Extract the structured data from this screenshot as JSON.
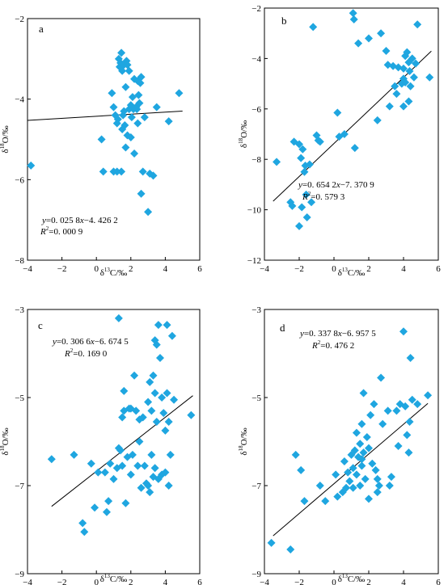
{
  "figure": {
    "point_color": "#1fa6e0",
    "line_color": "#000000"
  },
  "chart_data": [
    {
      "type": "scatter",
      "panel_label": "a",
      "xlabel_main": "δ",
      "xlabel_sup": "13",
      "xlabel_rest": "C/‰",
      "ylabel_main": "δ",
      "ylabel_sup": "18",
      "ylabel_rest": "O/‰",
      "xlim": [
        -4,
        6
      ],
      "ylim": [
        -8,
        -2
      ],
      "xticks": [
        -4,
        -2,
        0,
        2,
        4,
        6
      ],
      "yticks": [
        -8,
        -6,
        -4,
        -2
      ],
      "xtick_labels": [
        "−4",
        "−2",
        "0",
        "2",
        "4",
        "6"
      ],
      "ytick_labels": [
        "−8",
        "−6",
        "−4",
        "−2"
      ],
      "equation": {
        "line1_a": "y",
        "line1_b": "=0. 025 8",
        "line1_c": "x",
        "line1_d": "−4. 426 2",
        "line2_a": "R",
        "line2_b": "2",
        "line2_c": "=0. 000 9"
      },
      "fit": {
        "slope": 0.0258,
        "intercept": -4.4262,
        "x_range": [
          -4,
          5
        ]
      },
      "points": [
        [
          -3.8,
          -5.65
        ],
        [
          0.3,
          -5.0
        ],
        [
          0.4,
          -5.8
        ],
        [
          0.9,
          -3.85
        ],
        [
          1.0,
          -4.2
        ],
        [
          1.1,
          -4.4
        ],
        [
          1.2,
          -4.6
        ],
        [
          1.2,
          -5.8
        ],
        [
          1.3,
          -3.0
        ],
        [
          1.35,
          -3.2
        ],
        [
          1.4,
          -3.1
        ],
        [
          1.45,
          -2.85
        ],
        [
          1.5,
          -3.3
        ],
        [
          1.55,
          -4.4
        ],
        [
          1.6,
          -4.3
        ],
        [
          1.6,
          -3.15
        ],
        [
          1.65,
          -4.65
        ],
        [
          1.7,
          -3.7
        ],
        [
          1.7,
          -5.2
        ],
        [
          1.75,
          -3.05
        ],
        [
          1.8,
          -3.15
        ],
        [
          1.8,
          -4.9
        ],
        [
          1.9,
          -4.25
        ],
        [
          1.9,
          -3.3
        ],
        [
          2.0,
          -4.15
        ],
        [
          2.0,
          -4.95
        ],
        [
          2.05,
          -4.45
        ],
        [
          2.1,
          -3.95
        ],
        [
          2.15,
          -4.25
        ],
        [
          2.2,
          -5.35
        ],
        [
          2.2,
          -3.5
        ],
        [
          2.3,
          -4.2
        ],
        [
          2.35,
          -4.25
        ],
        [
          2.4,
          -3.55
        ],
        [
          2.4,
          -4.6
        ],
        [
          2.45,
          -3.9
        ],
        [
          2.5,
          -4.1
        ],
        [
          2.6,
          -3.45
        ],
        [
          2.6,
          -6.35
        ],
        [
          2.7,
          -5.8
        ],
        [
          2.8,
          -4.45
        ],
        [
          1.45,
          -5.8
        ],
        [
          1.5,
          -4.75
        ],
        [
          1.25,
          -4.5
        ],
        [
          3.0,
          -6.8
        ],
        [
          3.1,
          -5.85
        ],
        [
          3.3,
          -5.9
        ],
        [
          3.5,
          -4.2
        ],
        [
          4.2,
          -4.55
        ],
        [
          4.8,
          -3.85
        ],
        [
          1.0,
          -5.8
        ],
        [
          2.55,
          -3.6
        ]
      ]
    },
    {
      "type": "scatter",
      "panel_label": "b",
      "xlabel_main": "δ",
      "xlabel_sup": "13",
      "xlabel_rest": "C/‰",
      "ylabel_main": "δ",
      "ylabel_sup": "18",
      "ylabel_rest": "O/‰",
      "xlim": [
        -4,
        6
      ],
      "ylim": [
        -12,
        -2
      ],
      "xticks": [
        -4,
        -2,
        0,
        2,
        4,
        6
      ],
      "yticks": [
        -12,
        -10,
        -8,
        -6,
        -4,
        -2
      ],
      "xtick_labels": [
        "−4",
        "−2",
        "0",
        "2",
        "4",
        "6"
      ],
      "ytick_labels": [
        "−12",
        "−10",
        "−8",
        "−6",
        "−4",
        "−2"
      ],
      "equation": {
        "line1_a": "y",
        "line1_b": "=0. 654 2",
        "line1_c": "x",
        "line1_d": "−7. 370 9",
        "line2_a": "R",
        "line2_b": "2",
        "line2_c": "=0. 579 3"
      },
      "fit": {
        "slope": 0.6542,
        "intercept": -7.3709,
        "x_range": [
          -3.5,
          5.6
        ]
      },
      "points": [
        [
          -3.3,
          -8.1
        ],
        [
          -2.5,
          -9.7
        ],
        [
          -2.4,
          -9.85
        ],
        [
          -2.3,
          -7.3
        ],
        [
          -2.0,
          -10.65
        ],
        [
          -1.9,
          -7.95
        ],
        [
          -1.85,
          -9.9
        ],
        [
          -1.8,
          -7.6
        ],
        [
          -1.7,
          -8.5
        ],
        [
          -1.65,
          -8.25
        ],
        [
          -1.6,
          -9.4
        ],
        [
          -1.55,
          -10.3
        ],
        [
          -1.4,
          -8.2
        ],
        [
          -1.3,
          -9.7
        ],
        [
          -1.2,
          -2.75
        ],
        [
          -1.0,
          -7.05
        ],
        [
          -0.9,
          -7.25
        ],
        [
          -0.8,
          -7.3
        ],
        [
          0.2,
          -6.15
        ],
        [
          0.3,
          -7.1
        ],
        [
          0.6,
          -7.0
        ],
        [
          1.1,
          -2.2
        ],
        [
          1.15,
          -2.45
        ],
        [
          1.2,
          -7.55
        ],
        [
          1.4,
          -3.4
        ],
        [
          2.0,
          -3.2
        ],
        [
          2.5,
          -6.45
        ],
        [
          2.7,
          -3.0
        ],
        [
          3.0,
          -3.7
        ],
        [
          3.1,
          -4.25
        ],
        [
          3.2,
          -5.9
        ],
        [
          3.4,
          -4.3
        ],
        [
          3.5,
          -5.1
        ],
        [
          3.6,
          -5.4
        ],
        [
          3.7,
          -4.35
        ],
        [
          3.9,
          -5.0
        ],
        [
          4.0,
          -4.4
        ],
        [
          4.0,
          -4.8
        ],
        [
          4.1,
          -4.95
        ],
        [
          4.1,
          -3.9
        ],
        [
          4.2,
          -3.75
        ],
        [
          4.3,
          -4.15
        ],
        [
          4.35,
          -4.5
        ],
        [
          4.4,
          -5.1
        ],
        [
          4.5,
          -4.0
        ],
        [
          4.6,
          -4.75
        ],
        [
          4.7,
          -4.2
        ],
        [
          4.8,
          -2.65
        ],
        [
          4.3,
          -5.7
        ],
        [
          4.0,
          -5.9
        ],
        [
          5.5,
          -4.75
        ],
        [
          -2.0,
          -7.4
        ]
      ]
    },
    {
      "type": "scatter",
      "panel_label": "c",
      "xlabel_main": "δ",
      "xlabel_sup": "13",
      "xlabel_rest": "C/‰",
      "ylabel_main": "δ",
      "ylabel_sup": "18",
      "ylabel_rest": "O/‰",
      "xlim": [
        -4,
        6
      ],
      "ylim": [
        -9,
        -3
      ],
      "xticks": [
        -4,
        -2,
        0,
        2,
        4,
        6
      ],
      "yticks": [
        -9,
        -7,
        -5,
        -3
      ],
      "xtick_labels": [
        "−4",
        "−2",
        "0",
        "2",
        "4",
        "6"
      ],
      "ytick_labels": [
        "−9",
        "−7",
        "−5",
        "−3"
      ],
      "equation": {
        "line1_a": "y",
        "line1_b": "=0. 306 6",
        "line1_c": "x",
        "line1_d": "−6. 674 5",
        "line2_a": "R",
        "line2_b": "2",
        "line2_c": "=0. 169 0"
      },
      "fit": {
        "slope": 0.3066,
        "intercept": -6.6745,
        "x_range": [
          -2.6,
          5.6
        ]
      },
      "points": [
        [
          -2.6,
          -6.4
        ],
        [
          -1.3,
          -6.3
        ],
        [
          -0.8,
          -7.85
        ],
        [
          -0.7,
          -8.05
        ],
        [
          -0.3,
          -6.5
        ],
        [
          -0.1,
          -7.5
        ],
        [
          0.1,
          -6.7
        ],
        [
          0.5,
          -6.7
        ],
        [
          0.6,
          -7.6
        ],
        [
          0.7,
          -7.35
        ],
        [
          0.8,
          -6.5
        ],
        [
          1.0,
          -6.85
        ],
        [
          1.2,
          -6.6
        ],
        [
          1.3,
          -3.2
        ],
        [
          1.4,
          -6.2
        ],
        [
          1.5,
          -6.55
        ],
        [
          1.5,
          -5.45
        ],
        [
          1.6,
          -4.85
        ],
        [
          1.6,
          -5.3
        ],
        [
          1.7,
          -7.4
        ],
        [
          1.8,
          -6.35
        ],
        [
          1.9,
          -5.25
        ],
        [
          2.0,
          -5.25
        ],
        [
          2.0,
          -6.75
        ],
        [
          2.1,
          -6.3
        ],
        [
          2.2,
          -4.5
        ],
        [
          2.3,
          -5.3
        ],
        [
          2.4,
          -6.55
        ],
        [
          2.5,
          -5.5
        ],
        [
          2.5,
          -6.0
        ],
        [
          2.6,
          -7.05
        ],
        [
          2.7,
          -5.45
        ],
        [
          2.8,
          -6.55
        ],
        [
          2.9,
          -6.95
        ],
        [
          3.0,
          -7.0
        ],
        [
          3.0,
          -5.1
        ],
        [
          3.1,
          -4.65
        ],
        [
          3.1,
          -7.15
        ],
        [
          3.2,
          -5.3
        ],
        [
          3.2,
          -6.3
        ],
        [
          3.3,
          -4.5
        ],
        [
          3.3,
          -6.8
        ],
        [
          3.4,
          -4.9
        ],
        [
          3.4,
          -6.6
        ],
        [
          3.5,
          -3.8
        ],
        [
          3.5,
          -5.55
        ],
        [
          3.6,
          -3.35
        ],
        [
          3.6,
          -6.85
        ],
        [
          3.7,
          -4.1
        ],
        [
          3.8,
          -5.0
        ],
        [
          3.8,
          -6.75
        ],
        [
          3.9,
          -5.35
        ],
        [
          4.0,
          -5.75
        ],
        [
          4.0,
          -6.7
        ],
        [
          4.1,
          -3.35
        ],
        [
          4.1,
          -4.9
        ],
        [
          4.2,
          -5.55
        ],
        [
          4.2,
          -7.0
        ],
        [
          4.3,
          -6.3
        ],
        [
          4.4,
          -3.6
        ],
        [
          4.5,
          -5.05
        ],
        [
          5.5,
          -5.4
        ],
        [
          3.4,
          -3.7
        ],
        [
          1.3,
          -6.15
        ]
      ]
    },
    {
      "type": "scatter",
      "panel_label": "d",
      "xlabel_main": "δ",
      "xlabel_sup": "13",
      "xlabel_rest": "C/‰",
      "ylabel_main": "δ",
      "ylabel_sup": "18",
      "ylabel_rest": "O/‰",
      "xlim": [
        -4,
        6
      ],
      "ylim": [
        -9,
        -3
      ],
      "xticks": [
        -4,
        -2,
        0,
        2,
        4,
        6
      ],
      "yticks": [
        -9,
        -7,
        -5,
        -3
      ],
      "xtick_labels": [
        "−4",
        "−2",
        "0",
        "2",
        "4",
        "6"
      ],
      "ytick_labels": [
        "−9",
        "−7",
        "−5",
        "−3"
      ],
      "equation": {
        "line1_a": "y",
        "line1_b": "=0. 337 8",
        "line1_c": "x",
        "line1_d": "−6. 957 5",
        "line2_a": "R",
        "line2_b": "2",
        "line2_c": "=0. 476 2"
      },
      "fit": {
        "slope": 0.3378,
        "intercept": -6.9575,
        "x_range": [
          -3.5,
          5.4
        ]
      },
      "points": [
        [
          -3.6,
          -8.3
        ],
        [
          -2.5,
          -8.45
        ],
        [
          -2.2,
          -6.3
        ],
        [
          -1.9,
          -6.65
        ],
        [
          -1.7,
          -7.35
        ],
        [
          -0.8,
          -7.0
        ],
        [
          -0.5,
          -7.35
        ],
        [
          0.1,
          -6.75
        ],
        [
          0.2,
          -7.25
        ],
        [
          0.5,
          -7.15
        ],
        [
          0.6,
          -6.45
        ],
        [
          0.7,
          -7.05
        ],
        [
          0.8,
          -6.7
        ],
        [
          0.9,
          -6.9
        ],
        [
          1.0,
          -6.3
        ],
        [
          1.1,
          -6.6
        ],
        [
          1.1,
          -7.05
        ],
        [
          1.2,
          -6.2
        ],
        [
          1.3,
          -5.8
        ],
        [
          1.3,
          -6.75
        ],
        [
          1.4,
          -6.35
        ],
        [
          1.5,
          -6.05
        ],
        [
          1.5,
          -7.0
        ],
        [
          1.6,
          -5.6
        ],
        [
          1.6,
          -6.55
        ],
        [
          1.7,
          -4.9
        ],
        [
          1.7,
          -6.25
        ],
        [
          1.8,
          -6.85
        ],
        [
          1.9,
          -5.9
        ],
        [
          2.0,
          -6.15
        ],
        [
          2.0,
          -7.3
        ],
        [
          2.1,
          -5.4
        ],
        [
          2.2,
          -6.5
        ],
        [
          2.3,
          -5.15
        ],
        [
          2.4,
          -6.65
        ],
        [
          2.5,
          -7.15
        ],
        [
          2.5,
          -6.85
        ],
        [
          2.6,
          -7.0
        ],
        [
          2.7,
          -4.55
        ],
        [
          2.8,
          -5.6
        ],
        [
          3.1,
          -5.3
        ],
        [
          3.2,
          -7.0
        ],
        [
          3.3,
          -6.8
        ],
        [
          3.6,
          -5.3
        ],
        [
          3.7,
          -6.1
        ],
        [
          3.8,
          -5.15
        ],
        [
          4.0,
          -3.5
        ],
        [
          4.1,
          -5.2
        ],
        [
          4.2,
          -5.85
        ],
        [
          4.3,
          -6.25
        ],
        [
          4.35,
          -5.55
        ],
        [
          4.4,
          -4.1
        ],
        [
          4.5,
          -5.05
        ],
        [
          4.8,
          -5.15
        ],
        [
          5.4,
          -4.95
        ],
        [
          1.6,
          -6.4
        ]
      ]
    }
  ]
}
